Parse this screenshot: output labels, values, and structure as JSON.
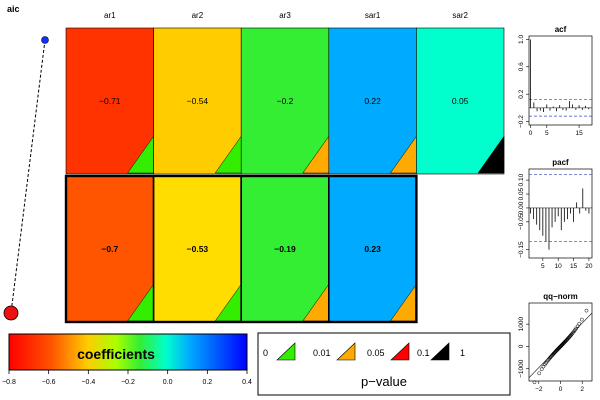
{
  "chart_data": {
    "type": "heatmap",
    "aic_label": "aic",
    "columns": [
      "ar1",
      "ar2",
      "ar3",
      "sar1",
      "sar2"
    ],
    "rows": [
      {
        "aic": "low",
        "cells": [
          {
            "value": "−0.71",
            "p_band": "0-0.01",
            "color": "#FF3300"
          },
          {
            "value": "−0.54",
            "p_band": "0-0.01",
            "color": "#FFCC00"
          },
          {
            "value": "−0.2",
            "p_band": "0.01-0.05",
            "color": "#33EE33"
          },
          {
            "value": "0.22",
            "p_band": "0.01-0.05",
            "color": "#00AAFF"
          },
          {
            "value": "0.05",
            "p_band": "0.1-1",
            "color": "#00FFCC"
          }
        ]
      },
      {
        "aic": "high",
        "selected": true,
        "cells": [
          {
            "value": "−0.7",
            "p_band": "0-0.01",
            "color": "#FF5500"
          },
          {
            "value": "−0.53",
            "p_band": "0-0.01",
            "color": "#FFDD00"
          },
          {
            "value": "−0.19",
            "p_band": "0.01-0.05",
            "color": "#33EE33"
          },
          {
            "value": "0.23",
            "p_band": "0.01-0.05",
            "color": "#00AAFF"
          }
        ]
      }
    ],
    "p_value_colors": {
      "0-0.01": "#33EE00",
      "0.01-0.05": "#FFAA00",
      "0.05-0.1": "#FF0000",
      "0.1-1": "#000000"
    },
    "coefficients_legend": {
      "title": "coefficients",
      "range": [
        -0.8,
        0.4
      ],
      "ticks": [
        "−0.8",
        "−0.6",
        "−0.4",
        "−0.2",
        "0.0",
        "0.2",
        "0.4"
      ]
    },
    "pvalue_legend": {
      "title": "p−value",
      "breaks": [
        "0",
        "0.01",
        "0.05",
        "0.1",
        "1"
      ]
    },
    "acf": {
      "title": "acf",
      "y_ticks": [
        "1.0",
        "0.6",
        "0.2",
        "−0.2"
      ],
      "x_ticks": [
        "0",
        "5",
        "15"
      ],
      "ylim": [
        -0.25,
        1.05
      ],
      "xlim": [
        -0.5,
        19
      ],
      "conf": 0.12,
      "lags": [
        0,
        1,
        2,
        3,
        4,
        5,
        6,
        7,
        8,
        9,
        10,
        11,
        12,
        13,
        14,
        15,
        16,
        17,
        18
      ],
      "values": [
        1.0,
        0.08,
        -0.05,
        -0.04,
        -0.06,
        0.05,
        -0.04,
        0.02,
        -0.05,
        0.04,
        -0.03,
        -0.04,
        0.1,
        0.05,
        -0.03,
        0.04,
        -0.03,
        0.03,
        -0.02
      ]
    },
    "pacf": {
      "title": "pacf",
      "y_ticks": [
        "0.10",
        "0.05",
        "0.00",
        "−0.05",
        "−0.15"
      ],
      "x_ticks": [
        "5",
        "10",
        "15",
        "20"
      ],
      "ylim": [
        -0.18,
        0.14
      ],
      "xlim": [
        0.5,
        21
      ],
      "conf": 0.12,
      "lags": [
        1,
        2,
        3,
        4,
        5,
        6,
        7,
        8,
        9,
        10,
        11,
        12,
        13,
        14,
        15,
        16,
        17,
        18,
        19,
        20
      ],
      "values": [
        -0.02,
        -0.04,
        -0.06,
        -0.08,
        -0.1,
        -0.12,
        -0.15,
        -0.07,
        -0.05,
        -0.03,
        -0.08,
        -0.05,
        -0.04,
        -0.02,
        -0.05,
        0.02,
        -0.02,
        0.07,
        -0.01,
        -0.02
      ]
    },
    "qqnorm": {
      "title": "qq−norm",
      "y_ticks": [
        "1000",
        "0",
        "−1000"
      ],
      "x_ticks": [
        "−2",
        "0",
        "2"
      ],
      "xlim": [
        -2.9,
        2.9
      ],
      "ylim": [
        -1550,
        1950
      ]
    }
  }
}
